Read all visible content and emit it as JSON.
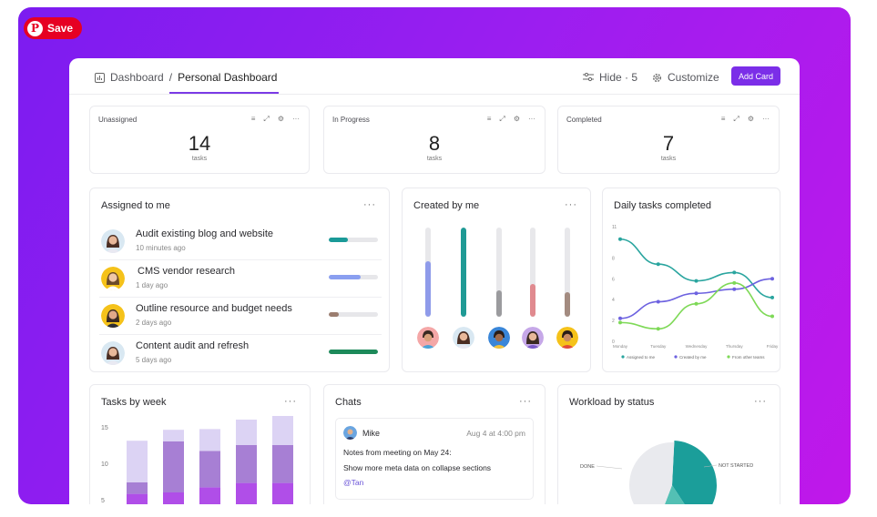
{
  "pin": {
    "save_label": "Save",
    "pin_glyph": "P",
    "color": "#e60023"
  },
  "breadcrumb": {
    "root": "Dashboard",
    "separator": "/",
    "current": "Personal Dashboard"
  },
  "toolbar": {
    "hide_label": "Hide · 5",
    "customize_label": "Customize",
    "add_card_label": "Add Card"
  },
  "stats": [
    {
      "title": "Unassigned",
      "value": "14",
      "unit": "tasks"
    },
    {
      "title": "In Progress",
      "value": "8",
      "unit": "tasks"
    },
    {
      "title": "Completed",
      "value": "7",
      "unit": "tasks"
    }
  ],
  "assigned": {
    "title": "Assigned to me",
    "more": "···",
    "tasks": [
      {
        "name": "Audit existing blog and website",
        "time": "10 minutes ago",
        "progress": 0.38,
        "color": "#1a9a98"
      },
      {
        "name": "CMS vendor research",
        "time": "1 day ago",
        "progress": 0.65,
        "color": "#8a9ff0"
      },
      {
        "name": "Outline resource and budget needs",
        "time": "2 days ago",
        "progress": 0.2,
        "color": "#9b7d6f"
      },
      {
        "name": "Content audit and refresh",
        "time": "5 days ago",
        "progress": 1.0,
        "color": "#1d8a5a"
      }
    ]
  },
  "created": {
    "title": "Created by me",
    "more": "···",
    "bars": [
      {
        "level": 0.62,
        "color": "#8f9bea"
      },
      {
        "level": 1.0,
        "color": "#1f9a95"
      },
      {
        "level": 0.3,
        "color": "#9b9b9e"
      },
      {
        "level": 0.37,
        "color": "#e08a8f"
      },
      {
        "level": 0.28,
        "color": "#a38b80"
      }
    ]
  },
  "daily": {
    "title": "Daily tasks completed",
    "more": "",
    "chart_data": {
      "type": "line",
      "categories": [
        "Monday",
        "Tuesday",
        "Wednesday",
        "Thursday",
        "Friday"
      ],
      "ylim": [
        0,
        11
      ],
      "yticks": [
        "0",
        "2",
        "4",
        "6",
        "8",
        "11"
      ],
      "series": [
        {
          "name": "Assigned to me",
          "color": "#2aa59f",
          "values": [
            9.8,
            7.4,
            5.8,
            6.6,
            4.2
          ]
        },
        {
          "name": "Created by me",
          "color": "#6d62e0",
          "values": [
            2.2,
            3.8,
            4.6,
            5.0,
            6.0
          ]
        },
        {
          "name": "From other teams",
          "color": "#7ed957",
          "values": [
            1.8,
            1.2,
            3.6,
            5.6,
            2.4
          ]
        }
      ]
    }
  },
  "weekly": {
    "title": "Tasks by week",
    "more": "···",
    "chart_data": {
      "type": "bar",
      "categories": [
        "",
        "",
        "",
        "",
        ""
      ],
      "yticks": [
        "5",
        "10",
        "15"
      ],
      "ylim": [
        2,
        17
      ],
      "series": [
        {
          "name": "",
          "color": "#b04ee8",
          "values": [
            3.8,
            4.0,
            4.7,
            5.3,
            5.3
          ]
        },
        {
          "name": "",
          "color": "#a77fd4",
          "values": [
            1.6,
            7.0,
            5.0,
            5.2,
            5.2
          ]
        },
        {
          "name": "",
          "color": "#dcd3f4",
          "values": [
            5.7,
            1.6,
            3.0,
            3.5,
            4.0
          ]
        }
      ]
    }
  },
  "chats": {
    "title": "Chats",
    "more": "···",
    "author": "Mike",
    "timestamp": "Aug 4 at 4:00 pm",
    "line1": "Notes from meeting on May 24:",
    "line2": "Show more meta data on collapse sections",
    "mention": "@Tan"
  },
  "workload": {
    "title": "Workload by status",
    "more": "···",
    "chart_data": {
      "type": "pie",
      "slices": [
        {
          "label": "DONE",
          "value": 40,
          "color": "#1b9e9a"
        },
        {
          "label": "",
          "value": 15,
          "color": "#53c0b4"
        },
        {
          "label": "NOT STARTED",
          "value": 45,
          "color": "#e9eaee"
        }
      ]
    }
  }
}
